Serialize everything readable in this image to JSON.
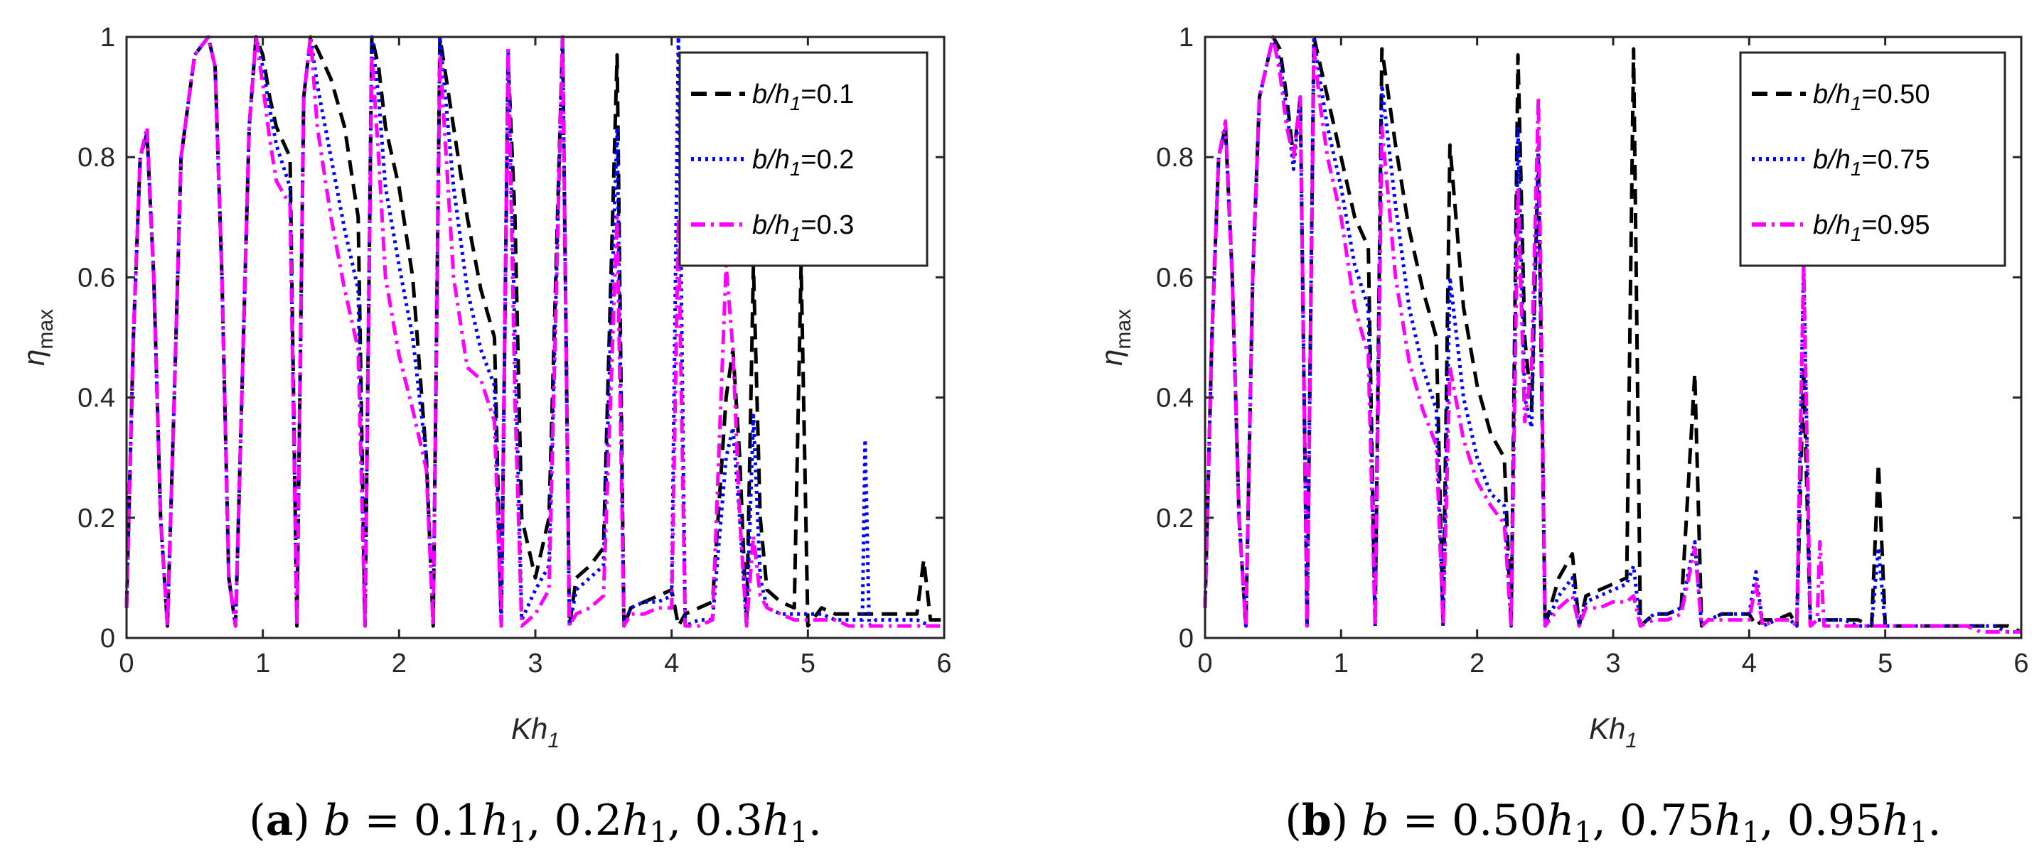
{
  "chart_data": [
    {
      "type": "line",
      "panel": "a",
      "caption": {
        "letter": "a",
        "text": "b = 0.1h₁, 0.2h₁, 0.3h₁."
      },
      "xlabel": "Kh1",
      "ylabel": "ηmax",
      "xlim": [
        0,
        6
      ],
      "ylim": [
        0,
        1
      ],
      "xticks": [
        "0",
        "1",
        "2",
        "3",
        "4",
        "5",
        "6"
      ],
      "yticks": [
        "0",
        "0.2",
        "0.4",
        "0.6",
        "0.8",
        "1"
      ],
      "legend_position": "top-right",
      "series": [
        {
          "name": "b/h1=0.1",
          "color": "#000000",
          "style": "dashed",
          "x": [
            0,
            0.05,
            0.1,
            0.15,
            0.2,
            0.25,
            0.3,
            0.35,
            0.4,
            0.5,
            0.6,
            0.65,
            0.7,
            0.75,
            0.8,
            0.9,
            0.95,
            1.0,
            1.05,
            1.1,
            1.2,
            1.25,
            1.3,
            1.35,
            1.4,
            1.5,
            1.6,
            1.7,
            1.75,
            1.8,
            1.85,
            1.9,
            2.0,
            2.1,
            2.2,
            2.25,
            2.3,
            2.4,
            2.5,
            2.6,
            2.7,
            2.75,
            2.8,
            2.85,
            2.9,
            3.0,
            3.1,
            3.2,
            3.25,
            3.3,
            3.4,
            3.5,
            3.6,
            3.65,
            3.7,
            3.8,
            3.9,
            4.0,
            4.05,
            4.1,
            4.2,
            4.3,
            4.4,
            4.45,
            4.5,
            4.55,
            4.6,
            4.65,
            4.7,
            4.8,
            4.9,
            4.95,
            5.0,
            5.1,
            5.2,
            5.3,
            5.4,
            5.45,
            5.5,
            5.6,
            5.7,
            5.8,
            5.85,
            5.9,
            6.0
          ],
          "y": [
            0.05,
            0.5,
            0.8,
            0.84,
            0.6,
            0.2,
            0.02,
            0.4,
            0.8,
            0.97,
            1.0,
            0.95,
            0.6,
            0.1,
            0.02,
            0.85,
            1.0,
            0.97,
            0.9,
            0.85,
            0.8,
            0.02,
            0.9,
            1.0,
            0.98,
            0.93,
            0.85,
            0.7,
            0.02,
            1.0,
            0.95,
            0.85,
            0.75,
            0.6,
            0.3,
            0.02,
            1.0,
            0.85,
            0.7,
            0.58,
            0.5,
            0.02,
            0.96,
            0.7,
            0.2,
            0.1,
            0.2,
            1.0,
            0.02,
            0.1,
            0.12,
            0.15,
            0.97,
            0.02,
            0.05,
            0.06,
            0.07,
            0.08,
            0.02,
            0.04,
            0.05,
            0.06,
            0.4,
            0.48,
            0.3,
            0.02,
            0.62,
            0.2,
            0.08,
            0.06,
            0.05,
            0.62,
            0.02,
            0.05,
            0.04,
            0.04,
            0.04,
            0.04,
            0.04,
            0.04,
            0.04,
            0.04,
            0.13,
            0.03,
            0.03
          ]
        },
        {
          "name": "b/h1=0.2",
          "color": "#0000ff",
          "style": "dotted",
          "x": [
            0,
            0.05,
            0.1,
            0.15,
            0.2,
            0.25,
            0.3,
            0.35,
            0.4,
            0.5,
            0.6,
            0.65,
            0.7,
            0.75,
            0.8,
            0.9,
            0.95,
            1.0,
            1.05,
            1.1,
            1.2,
            1.25,
            1.3,
            1.35,
            1.4,
            1.5,
            1.6,
            1.7,
            1.75,
            1.8,
            1.85,
            1.9,
            2.0,
            2.1,
            2.2,
            2.25,
            2.3,
            2.4,
            2.5,
            2.6,
            2.7,
            2.75,
            2.8,
            2.85,
            2.9,
            3.0,
            3.1,
            3.2,
            3.25,
            3.3,
            3.4,
            3.5,
            3.6,
            3.65,
            3.7,
            3.8,
            3.9,
            4.0,
            4.05,
            4.1,
            4.2,
            4.3,
            4.4,
            4.45,
            4.5,
            4.55,
            4.6,
            4.65,
            4.7,
            4.8,
            4.9,
            5.0,
            5.1,
            5.2,
            5.3,
            5.4,
            5.42,
            5.45,
            5.5,
            5.6,
            5.7,
            5.8,
            5.9,
            6.0
          ],
          "y": [
            0.05,
            0.5,
            0.8,
            0.84,
            0.6,
            0.2,
            0.02,
            0.4,
            0.8,
            0.97,
            1.0,
            0.95,
            0.6,
            0.1,
            0.02,
            0.85,
            1.0,
            0.95,
            0.88,
            0.82,
            0.75,
            0.02,
            0.9,
            1.0,
            0.92,
            0.8,
            0.68,
            0.58,
            0.02,
            1.0,
            0.9,
            0.75,
            0.62,
            0.5,
            0.3,
            0.02,
            1.0,
            0.75,
            0.58,
            0.48,
            0.42,
            0.02,
            0.98,
            0.5,
            0.03,
            0.08,
            0.12,
            1.0,
            0.02,
            0.08,
            0.1,
            0.12,
            0.85,
            0.02,
            0.05,
            0.06,
            0.06,
            0.07,
            1.0,
            0.02,
            0.03,
            0.03,
            0.3,
            0.35,
            0.2,
            0.02,
            0.37,
            0.1,
            0.05,
            0.04,
            0.04,
            0.04,
            0.04,
            0.03,
            0.03,
            0.03,
            0.33,
            0.02,
            0.03,
            0.03,
            0.03,
            0.03,
            0.02,
            0.02
          ]
        },
        {
          "name": "b/h1=0.3",
          "color": "#ff00ff",
          "style": "dashdot",
          "x": [
            0,
            0.05,
            0.1,
            0.15,
            0.2,
            0.25,
            0.3,
            0.35,
            0.4,
            0.5,
            0.6,
            0.65,
            0.7,
            0.75,
            0.8,
            0.9,
            0.95,
            1.0,
            1.05,
            1.1,
            1.2,
            1.25,
            1.3,
            1.35,
            1.4,
            1.5,
            1.6,
            1.7,
            1.75,
            1.8,
            1.85,
            1.9,
            2.0,
            2.1,
            2.2,
            2.25,
            2.3,
            2.4,
            2.5,
            2.6,
            2.7,
            2.75,
            2.8,
            2.85,
            2.9,
            3.0,
            3.1,
            3.2,
            3.25,
            3.3,
            3.4,
            3.5,
            3.6,
            3.65,
            3.7,
            3.8,
            3.9,
            4.0,
            4.05,
            4.1,
            4.2,
            4.3,
            4.4,
            4.45,
            4.5,
            4.55,
            4.6,
            4.65,
            4.7,
            4.8,
            4.9,
            5.0,
            5.1,
            5.2,
            5.3,
            5.4,
            5.5,
            5.6,
            5.7,
            5.8,
            5.9,
            6.0
          ],
          "y": [
            0.05,
            0.5,
            0.8,
            0.85,
            0.6,
            0.2,
            0.02,
            0.4,
            0.8,
            0.97,
            1.0,
            0.95,
            0.6,
            0.1,
            0.02,
            0.85,
            1.0,
            0.92,
            0.83,
            0.76,
            0.72,
            0.02,
            0.9,
            1.0,
            0.85,
            0.7,
            0.58,
            0.48,
            0.02,
            0.97,
            0.8,
            0.6,
            0.47,
            0.38,
            0.28,
            0.02,
            0.97,
            0.6,
            0.45,
            0.43,
            0.36,
            0.02,
            0.98,
            0.4,
            0.02,
            0.04,
            0.08,
            1.0,
            0.02,
            0.04,
            0.05,
            0.07,
            0.7,
            0.02,
            0.04,
            0.04,
            0.05,
            0.05,
            0.7,
            0.02,
            0.02,
            0.03,
            0.62,
            0.48,
            0.2,
            0.02,
            0.17,
            0.07,
            0.05,
            0.04,
            0.03,
            0.03,
            0.03,
            0.03,
            0.02,
            0.02,
            0.02,
            0.02,
            0.02,
            0.02,
            0.02,
            0.02
          ]
        }
      ]
    },
    {
      "type": "line",
      "panel": "b",
      "caption": {
        "letter": "b",
        "text": "b = 0.50h₁, 0.75h₁, 0.95h₁."
      },
      "xlabel": "Kh1",
      "ylabel": "ηmax",
      "xlim": [
        0,
        6
      ],
      "ylim": [
        0,
        1
      ],
      "xticks": [
        "0",
        "1",
        "2",
        "3",
        "4",
        "5",
        "6"
      ],
      "yticks": [
        "0",
        "0.2",
        "0.4",
        "0.6",
        "0.8",
        "1"
      ],
      "legend_position": "top-right",
      "series": [
        {
          "name": "b/h1=0.50",
          "color": "#000000",
          "style": "dashed",
          "x": [
            0,
            0.05,
            0.1,
            0.15,
            0.2,
            0.25,
            0.3,
            0.35,
            0.4,
            0.5,
            0.55,
            0.6,
            0.65,
            0.7,
            0.75,
            0.8,
            0.85,
            0.9,
            0.95,
            1.0,
            1.1,
            1.2,
            1.25,
            1.3,
            1.4,
            1.5,
            1.6,
            1.7,
            1.75,
            1.8,
            1.9,
            2.0,
            2.1,
            2.2,
            2.25,
            2.3,
            2.35,
            2.4,
            2.45,
            2.5,
            2.6,
            2.7,
            2.75,
            2.8,
            2.9,
            3.0,
            3.1,
            3.15,
            3.2,
            3.3,
            3.4,
            3.5,
            3.6,
            3.65,
            3.7,
            3.8,
            3.9,
            4.0,
            4.05,
            4.1,
            4.2,
            4.3,
            4.35,
            4.4,
            4.45,
            4.5,
            4.6,
            4.7,
            4.8,
            4.9,
            4.95,
            5.0,
            5.1,
            5.2,
            5.3,
            5.4,
            5.5,
            5.6,
            5.7,
            5.8,
            5.9,
            6.0
          ],
          "y": [
            0.05,
            0.5,
            0.8,
            0.85,
            0.6,
            0.2,
            0.02,
            0.6,
            0.9,
            1.0,
            0.98,
            0.9,
            0.8,
            0.9,
            0.02,
            1.0,
            0.95,
            0.9,
            0.85,
            0.8,
            0.7,
            0.65,
            0.02,
            0.98,
            0.82,
            0.68,
            0.58,
            0.5,
            0.02,
            0.82,
            0.55,
            0.42,
            0.34,
            0.3,
            0.02,
            0.97,
            0.5,
            0.38,
            0.8,
            0.02,
            0.1,
            0.14,
            0.02,
            0.07,
            0.08,
            0.09,
            0.1,
            0.98,
            0.02,
            0.04,
            0.04,
            0.05,
            0.44,
            0.02,
            0.03,
            0.04,
            0.04,
            0.04,
            0.02,
            0.03,
            0.03,
            0.04,
            0.02,
            0.45,
            0.02,
            0.03,
            0.03,
            0.03,
            0.03,
            0.02,
            0.29,
            0.02,
            0.02,
            0.02,
            0.02,
            0.02,
            0.02,
            0.02,
            0.02,
            0.02,
            0.02,
            0.01
          ]
        },
        {
          "name": "b/h1=0.75",
          "color": "#0000ff",
          "style": "dotted",
          "x": [
            0,
            0.05,
            0.1,
            0.15,
            0.2,
            0.25,
            0.3,
            0.35,
            0.4,
            0.5,
            0.55,
            0.6,
            0.65,
            0.7,
            0.75,
            0.8,
            0.85,
            0.9,
            0.95,
            1.0,
            1.1,
            1.2,
            1.25,
            1.3,
            1.4,
            1.5,
            1.6,
            1.7,
            1.75,
            1.8,
            1.9,
            2.0,
            2.1,
            2.2,
            2.25,
            2.3,
            2.35,
            2.4,
            2.45,
            2.5,
            2.6,
            2.7,
            2.75,
            2.8,
            2.9,
            3.0,
            3.1,
            3.15,
            3.2,
            3.3,
            3.4,
            3.5,
            3.6,
            3.65,
            3.7,
            3.8,
            3.9,
            4.0,
            4.05,
            4.1,
            4.2,
            4.3,
            4.35,
            4.4,
            4.45,
            4.5,
            4.6,
            4.7,
            4.8,
            4.9,
            4.95,
            5.0,
            5.1,
            5.2,
            5.3,
            5.4,
            5.5,
            5.6,
            5.7,
            5.8,
            5.9,
            6.0
          ],
          "y": [
            0.05,
            0.5,
            0.8,
            0.85,
            0.6,
            0.2,
            0.02,
            0.6,
            0.9,
            1.0,
            0.96,
            0.88,
            0.78,
            0.9,
            0.02,
            1.0,
            0.92,
            0.85,
            0.8,
            0.75,
            0.62,
            0.55,
            0.02,
            0.92,
            0.72,
            0.55,
            0.45,
            0.38,
            0.02,
            0.6,
            0.4,
            0.3,
            0.24,
            0.22,
            0.02,
            0.85,
            0.4,
            0.35,
            0.82,
            0.02,
            0.07,
            0.1,
            0.02,
            0.06,
            0.07,
            0.08,
            0.09,
            0.12,
            0.02,
            0.04,
            0.04,
            0.05,
            0.16,
            0.02,
            0.03,
            0.04,
            0.04,
            0.04,
            0.11,
            0.02,
            0.03,
            0.03,
            0.02,
            0.62,
            0.02,
            0.03,
            0.03,
            0.03,
            0.02,
            0.02,
            0.15,
            0.02,
            0.02,
            0.02,
            0.02,
            0.02,
            0.02,
            0.02,
            0.02,
            0.02,
            0.01,
            0.01
          ]
        },
        {
          "name": "b/h1=0.95",
          "color": "#ff00ff",
          "style": "dashdot",
          "x": [
            0,
            0.05,
            0.1,
            0.15,
            0.2,
            0.25,
            0.3,
            0.35,
            0.4,
            0.5,
            0.55,
            0.6,
            0.65,
            0.7,
            0.75,
            0.8,
            0.85,
            0.9,
            0.95,
            1.0,
            1.1,
            1.2,
            1.25,
            1.3,
            1.4,
            1.5,
            1.6,
            1.7,
            1.75,
            1.8,
            1.9,
            2.0,
            2.1,
            2.2,
            2.25,
            2.3,
            2.35,
            2.4,
            2.45,
            2.5,
            2.6,
            2.7,
            2.75,
            2.8,
            2.9,
            3.0,
            3.1,
            3.15,
            3.2,
            3.3,
            3.4,
            3.5,
            3.6,
            3.65,
            3.7,
            3.8,
            3.9,
            4.0,
            4.05,
            4.1,
            4.2,
            4.3,
            4.35,
            4.4,
            4.45,
            4.5,
            4.52,
            4.55,
            4.6,
            4.7,
            4.8,
            4.9,
            5.0,
            5.1,
            5.2,
            5.3,
            5.4,
            5.5,
            5.6,
            5.7,
            5.8,
            5.9,
            6.0
          ],
          "y": [
            0.05,
            0.5,
            0.8,
            0.86,
            0.6,
            0.2,
            0.02,
            0.6,
            0.9,
            1.0,
            0.94,
            0.85,
            0.8,
            0.9,
            0.02,
            0.98,
            0.88,
            0.8,
            0.75,
            0.7,
            0.55,
            0.47,
            0.02,
            0.85,
            0.6,
            0.46,
            0.38,
            0.32,
            0.02,
            0.45,
            0.33,
            0.26,
            0.22,
            0.19,
            0.02,
            0.75,
            0.36,
            0.45,
            0.9,
            0.02,
            0.05,
            0.07,
            0.02,
            0.05,
            0.05,
            0.06,
            0.06,
            0.07,
            0.02,
            0.03,
            0.03,
            0.04,
            0.15,
            0.02,
            0.03,
            0.03,
            0.03,
            0.03,
            0.09,
            0.02,
            0.03,
            0.03,
            0.02,
            0.62,
            0.02,
            0.03,
            0.16,
            0.02,
            0.02,
            0.02,
            0.02,
            0.02,
            0.02,
            0.02,
            0.02,
            0.02,
            0.02,
            0.02,
            0.02,
            0.01,
            0.01,
            0.01,
            0.01
          ]
        }
      ]
    }
  ]
}
